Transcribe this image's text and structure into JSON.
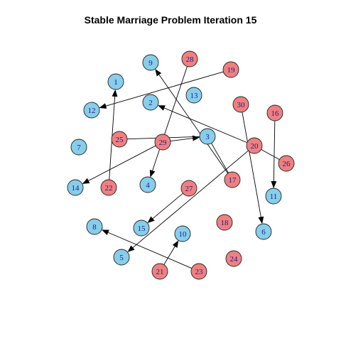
{
  "title": "Stable Marriage Problem Iteration 15",
  "colors": {
    "blue": "#87ceeb",
    "red": "#f08080",
    "stroke": "#222222",
    "edge": "#000000",
    "label": "#1a1a8c"
  },
  "nodes": [
    {
      "id": "1",
      "group": "blue"
    },
    {
      "id": "2",
      "group": "blue"
    },
    {
      "id": "3",
      "group": "blue"
    },
    {
      "id": "4",
      "group": "blue"
    },
    {
      "id": "5",
      "group": "blue"
    },
    {
      "id": "6",
      "group": "blue"
    },
    {
      "id": "7",
      "group": "blue"
    },
    {
      "id": "8",
      "group": "blue"
    },
    {
      "id": "9",
      "group": "blue"
    },
    {
      "id": "10",
      "group": "blue"
    },
    {
      "id": "11",
      "group": "blue"
    },
    {
      "id": "12",
      "group": "blue"
    },
    {
      "id": "13",
      "group": "blue"
    },
    {
      "id": "14",
      "group": "blue"
    },
    {
      "id": "15",
      "group": "blue"
    },
    {
      "id": "17",
      "group": "red"
    },
    {
      "id": "18",
      "group": "red"
    },
    {
      "id": "19",
      "group": "red"
    },
    {
      "id": "20",
      "group": "red"
    },
    {
      "id": "21",
      "group": "red"
    },
    {
      "id": "22",
      "group": "red"
    },
    {
      "id": "23",
      "group": "red"
    },
    {
      "id": "24",
      "group": "red"
    },
    {
      "id": "25",
      "group": "red"
    },
    {
      "id": "26",
      "group": "red"
    },
    {
      "id": "27",
      "group": "red"
    },
    {
      "id": "28",
      "group": "red"
    },
    {
      "id": "29",
      "group": "red"
    },
    {
      "id": "30",
      "group": "red"
    }
  ],
  "edges": [
    {
      "from": "22",
      "to": "1",
      "arrow": true
    },
    {
      "from": "19",
      "to": "12",
      "arrow": true
    },
    {
      "from": "28",
      "to": "4",
      "arrow": true
    },
    {
      "from": "17",
      "to": "9",
      "arrow": true
    },
    {
      "from": "20",
      "to": "2",
      "arrow": true
    },
    {
      "from": "25",
      "to": "3",
      "arrow": false
    },
    {
      "from": "29",
      "to": "3",
      "arrow": true
    },
    {
      "from": "29",
      "to": "14",
      "arrow": true
    },
    {
      "from": "20",
      "to": "26",
      "arrow": false
    },
    {
      "from": "3",
      "to": "17",
      "arrow": false
    },
    {
      "from": "16",
      "to": "11",
      "arrow": true
    },
    {
      "from": "30",
      "to": "6",
      "arrow": true
    },
    {
      "from": "20",
      "to": "5",
      "arrow": true
    },
    {
      "from": "27",
      "to": "15",
      "arrow": true
    },
    {
      "from": "21",
      "to": "10",
      "arrow": true
    },
    {
      "from": "23",
      "to": "8",
      "arrow": true
    }
  ],
  "extra_nodes": [
    {
      "id": "16",
      "group": "red"
    }
  ]
}
